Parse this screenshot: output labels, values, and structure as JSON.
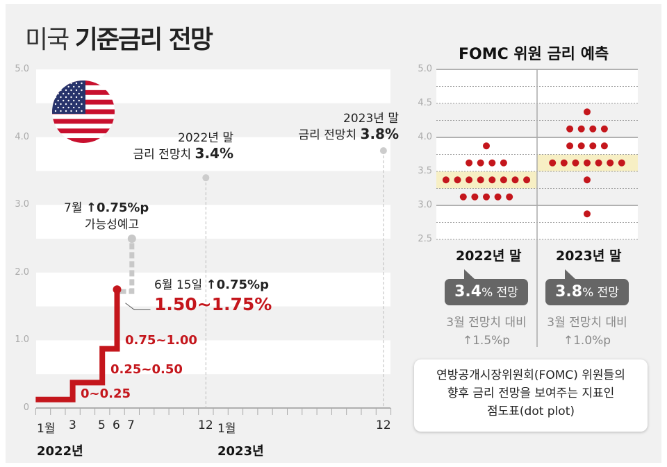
{
  "title": {
    "light": "미국",
    "bold": "기준금리 전망"
  },
  "colors": {
    "red": "#c4161c",
    "grey_dash": "#c8c8c8",
    "highlight": "#f7efc4",
    "bubble": "#666666"
  },
  "chart_data": [
    {
      "type": "line",
      "title": "미국 기준금리 전망",
      "ylim": [
        0,
        5
      ],
      "yticks": [
        "0",
        "1.0",
        "2.0",
        "3.0",
        "4.0",
        "5.0"
      ],
      "xticks": [
        {
          "m": 0,
          "label": "1월"
        },
        {
          "m": 2,
          "label": "3"
        },
        {
          "m": 4,
          "label": "5"
        },
        {
          "m": 5,
          "label": "6"
        },
        {
          "m": 6,
          "label": "7"
        },
        {
          "m": 11,
          "label": "12"
        },
        {
          "m": 12,
          "label": "1월"
        },
        {
          "m": 23,
          "label": "12"
        }
      ],
      "years": [
        "2022년",
        "2023년"
      ],
      "steps": [
        {
          "from": -0.5,
          "to": 2,
          "range": "0~0.25",
          "mid": 0.125
        },
        {
          "from": 2,
          "to": 4,
          "range": "0.25~0.50",
          "mid": 0.375
        },
        {
          "from": 4,
          "to": 5,
          "range": "0.75~1.00",
          "mid": 0.875
        },
        {
          "from": 5,
          "to": 5,
          "range": "1.50~1.75",
          "mid": 1.75
        }
      ],
      "july_forecast": 2.5,
      "forecast_points": [
        {
          "m": 11,
          "value": 3.4
        },
        {
          "m": 23,
          "value": 3.8
        }
      ],
      "annotations": {
        "july": {
          "line1": "7월",
          "line1b": "↑0.75%p",
          "line2": "가능성예고"
        },
        "june": {
          "line1": "6월 15일",
          "line1b": "↑0.75%p",
          "current": "1.50~1.75%"
        },
        "end2022": {
          "line1": "2022년 말",
          "line2": "금리 전망치",
          "value": "3.4%"
        },
        "end2023": {
          "line1": "2023년 말",
          "line2": "금리 전망치",
          "value": "3.8%"
        }
      }
    },
    {
      "type": "scatter",
      "title": "FOMC 위원 금리 예측",
      "ylim": [
        2.5,
        5
      ],
      "yticks": [
        "2.5",
        "3.0",
        "3.5",
        "4.0",
        "4.5",
        "5.0"
      ],
      "categories": [
        "2022년 말",
        "2023년 말"
      ],
      "dots": [
        [
          {
            "value": 3.875,
            "count": 1
          },
          {
            "value": 3.625,
            "count": 4
          },
          {
            "value": 3.375,
            "count": 8
          },
          {
            "value": 3.125,
            "count": 5
          }
        ],
        [
          {
            "value": 4.375,
            "count": 1
          },
          {
            "value": 4.125,
            "count": 4
          },
          {
            "value": 3.875,
            "count": 4
          },
          {
            "value": 3.625,
            "count": 7
          },
          {
            "value": 3.375,
            "count": 1
          },
          {
            "value": 2.875,
            "count": 1
          }
        ]
      ],
      "highlight": [
        [
          3.25,
          3.5
        ],
        [
          3.5,
          3.75
        ]
      ],
      "bubbles": [
        {
          "value": "3.4",
          "unit": "% 전망"
        },
        {
          "value": "3.8",
          "unit": "% 전망"
        }
      ],
      "subs": [
        {
          "line1": "3월 전망치 대비",
          "line2": "↑1.5%p"
        },
        {
          "line1": "3월 전망치 대비",
          "line2": "↑1.0%p"
        }
      ]
    }
  ],
  "note": {
    "line1": "연방공개시장위원회(FOMC) 위원들의",
    "line2": "향후 금리 전망을 보여주는 지표인",
    "line3": "점도표(dot plot)"
  }
}
